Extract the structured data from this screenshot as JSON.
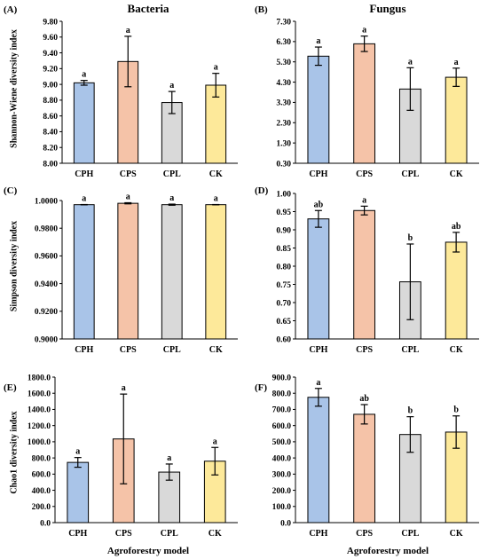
{
  "figure": {
    "xlabel": "Agroforestry model",
    "titles": [
      "Bacteria",
      "Fungus"
    ]
  },
  "colors": {
    "CPH": "#a9c4e8",
    "CPS": "#f5c3a8",
    "CPL": "#d9d9d9",
    "CK": "#fde99a",
    "axis": "#000000"
  },
  "chart_data": [
    {
      "type": "bar",
      "panel": "(A)",
      "title": "Bacteria",
      "ylabel": "Shannon-Wiene diversity index",
      "xlabel": "",
      "categories": [
        "CPH",
        "CPS",
        "CPL",
        "CK"
      ],
      "values": [
        9.02,
        9.29,
        8.77,
        8.99
      ],
      "errors": [
        0.03,
        0.32,
        0.14,
        0.15
      ],
      "significance": [
        "a",
        "a",
        "a",
        "a"
      ],
      "ylim": [
        8.0,
        9.8
      ],
      "yticks": [
        "8.00",
        "8.20",
        "8.40",
        "8.60",
        "8.80",
        "9.00",
        "9.20",
        "9.40",
        "9.60",
        "9.80"
      ]
    },
    {
      "type": "bar",
      "panel": "(B)",
      "title": "Fungus",
      "ylabel": "",
      "xlabel": "",
      "categories": [
        "CPH",
        "CPS",
        "CPL",
        "CK"
      ],
      "values": [
        5.58,
        6.19,
        3.96,
        4.54
      ],
      "errors": [
        0.45,
        0.38,
        1.05,
        0.45
      ],
      "significance": [
        "a",
        "a",
        "a",
        "a"
      ],
      "ylim": [
        0.3,
        7.3
      ],
      "yticks": [
        "0.30",
        "1.30",
        "2.30",
        "3.30",
        "4.30",
        "5.30",
        "6.30",
        "7.30"
      ]
    },
    {
      "type": "bar",
      "panel": "(C)",
      "title": "",
      "ylabel": "Simpson  diversity index",
      "xlabel": "",
      "categories": [
        "CPH",
        "CPS",
        "CPL",
        "CK"
      ],
      "values": [
        0.997,
        0.998,
        0.997,
        0.997
      ],
      "errors": [
        0.0001,
        0.0004,
        0.0004,
        0.0001
      ],
      "significance": [
        "a",
        "a",
        "a",
        "a"
      ],
      "ylim": [
        0.9,
        1.0
      ],
      "yticks": [
        "0.9000",
        "0.9200",
        "0.9400",
        "0.9600",
        "0.9800",
        "1.0000"
      ]
    },
    {
      "type": "bar",
      "panel": "(D)",
      "title": "",
      "ylabel": "",
      "xlabel": "",
      "categories": [
        "CPH",
        "CPS",
        "CPL",
        "CK"
      ],
      "values": [
        0.93,
        0.953,
        0.757,
        0.866
      ],
      "errors": [
        0.023,
        0.012,
        0.104,
        0.027
      ],
      "significance": [
        "ab",
        "a",
        "b",
        "ab"
      ],
      "ylim": [
        0.6,
        1.0
      ],
      "yticks": [
        "0.60",
        "0.65",
        "0.70",
        "0.75",
        "0.80",
        "0.85",
        "0.90",
        "0.95",
        "1.00"
      ]
    },
    {
      "type": "bar",
      "panel": "(E)",
      "title": "",
      "ylabel": "Chao1  diversity index",
      "xlabel": "Agroforestry model",
      "categories": [
        "CPH",
        "CPS",
        "CPL",
        "CK"
      ],
      "values": [
        745,
        1035,
        625,
        760
      ],
      "errors": [
        60,
        555,
        100,
        170
      ],
      "significance": [
        "a",
        "a",
        "a",
        "a"
      ],
      "ylim": [
        0,
        1800
      ],
      "yticks": [
        "0.0",
        "200.0",
        "400.0",
        "600.0",
        "800.0",
        "1000.0",
        "1200.0",
        "1400.0",
        "1600.0",
        "1800.0"
      ]
    },
    {
      "type": "bar",
      "panel": "(F)",
      "title": "",
      "ylabel": "",
      "xlabel": "Agroforestry model",
      "categories": [
        "CPH",
        "CPS",
        "CPL",
        "CK"
      ],
      "values": [
        775,
        670,
        545,
        560
      ],
      "errors": [
        55,
        60,
        110,
        100
      ],
      "significance": [
        "a",
        "ab",
        "b",
        "b"
      ],
      "ylim": [
        0,
        900
      ],
      "yticks": [
        "0.0",
        "100.0",
        "200.0",
        "300.0",
        "400.0",
        "500.0",
        "600.0",
        "700.0",
        "800.0",
        "900.0"
      ]
    }
  ]
}
